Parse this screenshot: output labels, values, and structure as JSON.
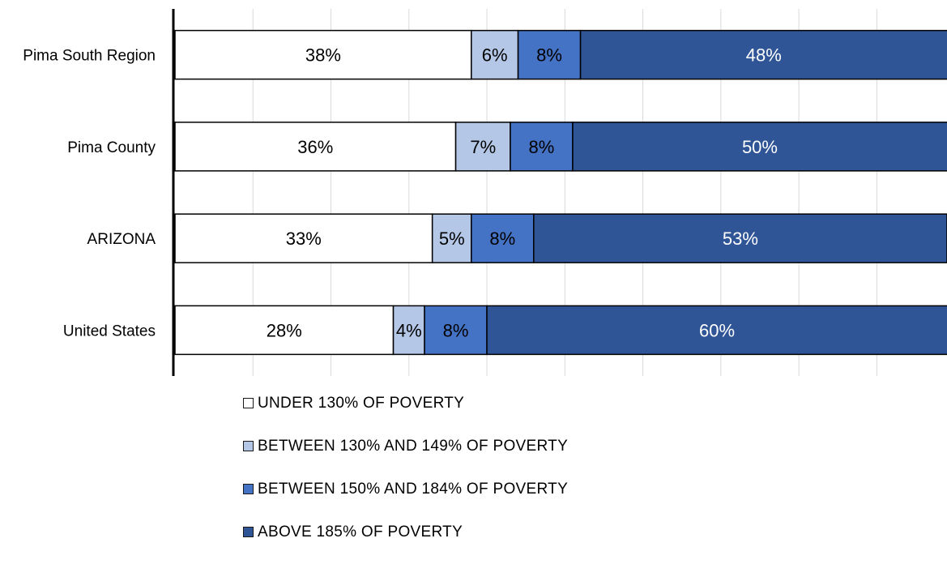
{
  "chart_data": {
    "type": "bar",
    "orientation": "horizontal",
    "stacked": true,
    "percent_stacked": true,
    "categories": [
      "Pima South Region",
      "Pima County",
      "ARIZONA",
      "United States"
    ],
    "series": [
      {
        "name": "UNDER 130% OF POVERTY",
        "values": [
          38,
          36,
          33,
          28
        ],
        "labels": [
          "38%",
          "36%",
          "33%",
          "28%"
        ],
        "color": "#ffffff",
        "label_color": "#000000"
      },
      {
        "name": "BETWEEN 130% AND 149% OF POVERTY",
        "values": [
          6,
          7,
          5,
          4
        ],
        "labels": [
          "6%",
          "7%",
          "5%",
          "4%"
        ],
        "color": "#b4c7e7",
        "label_color": "#000000"
      },
      {
        "name": "BETWEEN 150% AND 184% OF POVERTY",
        "values": [
          8,
          8,
          8,
          8
        ],
        "labels": [
          "8%",
          "8%",
          "8%",
          "8%"
        ],
        "color": "#4472c4",
        "label_color": "#000000"
      },
      {
        "name": "ABOVE 185% OF POVERTY",
        "values": [
          48,
          50,
          53,
          60
        ],
        "labels": [
          "48%",
          "50%",
          "53%",
          "60%"
        ],
        "color": "#2f5597",
        "label_color": "#ffffff"
      }
    ],
    "xlim": [
      0,
      100
    ],
    "grid": true,
    "gridline_color": "#d9d9d9",
    "legend_position": "bottom"
  }
}
